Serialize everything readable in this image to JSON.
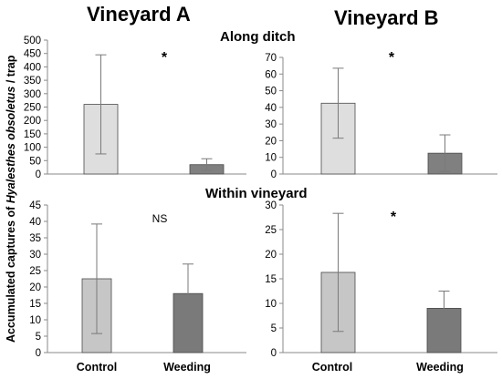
{
  "figure": {
    "columns": [
      "Vineyard A",
      "Vineyard B"
    ],
    "rows": [
      "Along ditch",
      "Within vineyard"
    ],
    "ylabel_prefix": "Accumulated captures of ",
    "ylabel_species": "Hyalesthes obsoletus",
    "ylabel_suffix": " / trap",
    "categories": [
      "Control",
      "Weeding"
    ]
  },
  "chart_data": [
    {
      "type": "bar",
      "panel": "Vineyard A / Along ditch",
      "categories": [
        "Control",
        "Weeding"
      ],
      "values": [
        260,
        35
      ],
      "error": [
        185,
        22
      ],
      "ylim": [
        0,
        500
      ],
      "ytick_step": 50,
      "annotation": "*",
      "colors": [
        "#dedede",
        "#808080"
      ]
    },
    {
      "type": "bar",
      "panel": "Vineyard B / Along ditch",
      "categories": [
        "Control",
        "Weeding"
      ],
      "values": [
        42.5,
        12.5
      ],
      "error": [
        21,
        11
      ],
      "ylim": [
        0,
        70
      ],
      "ytick_step": 10,
      "annotation": "*",
      "colors": [
        "#dedede",
        "#808080"
      ]
    },
    {
      "type": "bar",
      "panel": "Vineyard A / Within vineyard",
      "categories": [
        "Control",
        "Weeding"
      ],
      "values": [
        22.5,
        18
      ],
      "error": [
        16.7,
        9
      ],
      "ylim": [
        0,
        45
      ],
      "ytick_step": 5,
      "annotation": "NS",
      "colors": [
        "#c6c6c6",
        "#7a7a7a"
      ]
    },
    {
      "type": "bar",
      "panel": "Vineyard B / Within vineyard",
      "categories": [
        "Control",
        "Weeding"
      ],
      "values": [
        16.3,
        9
      ],
      "error": [
        12,
        3.5
      ],
      "ylim": [
        0,
        30
      ],
      "ytick_step": 5,
      "annotation": "*",
      "colors": [
        "#c6c6c6",
        "#7a7a7a"
      ]
    }
  ]
}
